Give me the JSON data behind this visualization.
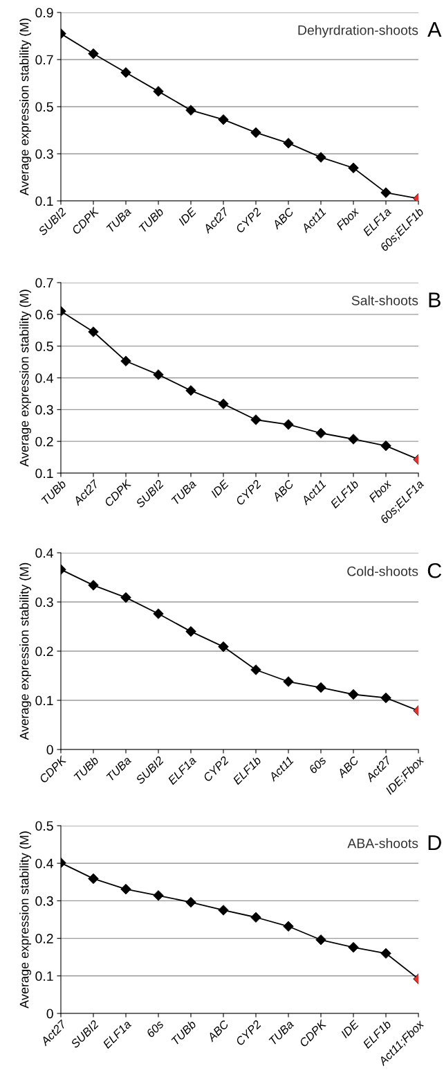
{
  "chart_data": [
    {
      "type": "line",
      "title": "A",
      "annotations": [
        "Dehyrdration-shoots"
      ],
      "ylabel": "Average expression stability (M)",
      "categories": [
        "SUBI2",
        "CDPK",
        "TUBa",
        "TUBb",
        "IDE",
        "Act27",
        "CYP2",
        "ABC",
        "Act11",
        "Fbox",
        "ELF1a",
        "60s;ELF1b"
      ],
      "series": [
        {
          "color": "#000000",
          "colors": [
            "#000000",
            "#000000",
            "#000000",
            "#000000",
            "#000000",
            "#000000",
            "#000000",
            "#000000",
            "#000000",
            "#000000",
            "#000000",
            "#e8312f"
          ],
          "values": [
            0.81,
            0.725,
            0.645,
            0.565,
            0.485,
            0.445,
            0.39,
            0.345,
            0.285,
            0.24,
            0.135,
            0.11
          ]
        }
      ],
      "ylim": [
        0.1,
        0.9
      ],
      "yticks": [
        0.1,
        0.3,
        0.5,
        0.7,
        0.9
      ],
      "grid": "y",
      "marker": "diamond",
      "line_style": "solid"
    },
    {
      "type": "line",
      "title": "B",
      "annotations": [
        "Salt-shoots"
      ],
      "ylabel": "Average expression stability (M)",
      "categories": [
        "TUBb",
        "Act27",
        "CDPK",
        "SUBI2",
        "TUBa",
        "IDE",
        "CYP2",
        "ABC",
        "Act11",
        "ELF1b",
        "Fbox",
        "60s;ELF1a"
      ],
      "series": [
        {
          "color": "#000000",
          "colors": [
            "#000000",
            "#000000",
            "#000000",
            "#000000",
            "#000000",
            "#000000",
            "#000000",
            "#000000",
            "#000000",
            "#000000",
            "#000000",
            "#e8312f"
          ],
          "values": [
            0.61,
            0.545,
            0.453,
            0.41,
            0.36,
            0.318,
            0.268,
            0.253,
            0.226,
            0.207,
            0.186,
            0.143
          ]
        }
      ],
      "ylim": [
        0.1,
        0.7
      ],
      "yticks": [
        0.1,
        0.2,
        0.3,
        0.4,
        0.5,
        0.6,
        0.7
      ],
      "grid": "y",
      "marker": "diamond",
      "line_style": "solid"
    },
    {
      "type": "line",
      "title": "C",
      "annotations": [
        "Cold-shoots"
      ],
      "ylabel": "Average expression stability (M)",
      "categories": [
        "CDPK",
        "TUBb",
        "TUBa",
        "SUBI2",
        "ELF1a",
        "CYP2",
        "ELF1b",
        "Act11",
        "60s",
        "ABC",
        "Act27",
        "IDE;Fbox"
      ],
      "series": [
        {
          "color": "#000000",
          "colors": [
            "#000000",
            "#000000",
            "#000000",
            "#000000",
            "#000000",
            "#000000",
            "#000000",
            "#000000",
            "#000000",
            "#000000",
            "#000000",
            "#e8312f"
          ],
          "values": [
            0.366,
            0.334,
            0.309,
            0.276,
            0.24,
            0.209,
            0.162,
            0.138,
            0.126,
            0.112,
            0.105,
            0.079
          ]
        }
      ],
      "ylim": [
        0,
        0.4
      ],
      "yticks": [
        0,
        0.1,
        0.2,
        0.3,
        0.4
      ],
      "grid": "y",
      "marker": "diamond",
      "line_style": "solid"
    },
    {
      "type": "line",
      "title": "D",
      "annotations": [
        "ABA-shoots"
      ],
      "ylabel": "Average expression stability (M)",
      "categories": [
        "Act27",
        "SUBI2",
        "ELF1a",
        "60s",
        "TUBb",
        "ABC",
        "CYP2",
        "TUBa",
        "CDPK",
        "IDE",
        "ELF1b",
        "Act11;Fbox"
      ],
      "series": [
        {
          "color": "#000000",
          "colors": [
            "#000000",
            "#000000",
            "#000000",
            "#000000",
            "#000000",
            "#000000",
            "#000000",
            "#000000",
            "#000000",
            "#000000",
            "#000000",
            "#e8312f"
          ],
          "values": [
            0.401,
            0.359,
            0.331,
            0.314,
            0.296,
            0.275,
            0.256,
            0.232,
            0.196,
            0.176,
            0.16,
            0.092
          ]
        }
      ],
      "ylim": [
        0,
        0.5
      ],
      "yticks": [
        0,
        0.1,
        0.2,
        0.3,
        0.4,
        0.5
      ],
      "grid": "y",
      "marker": "diamond",
      "line_style": "solid"
    }
  ]
}
